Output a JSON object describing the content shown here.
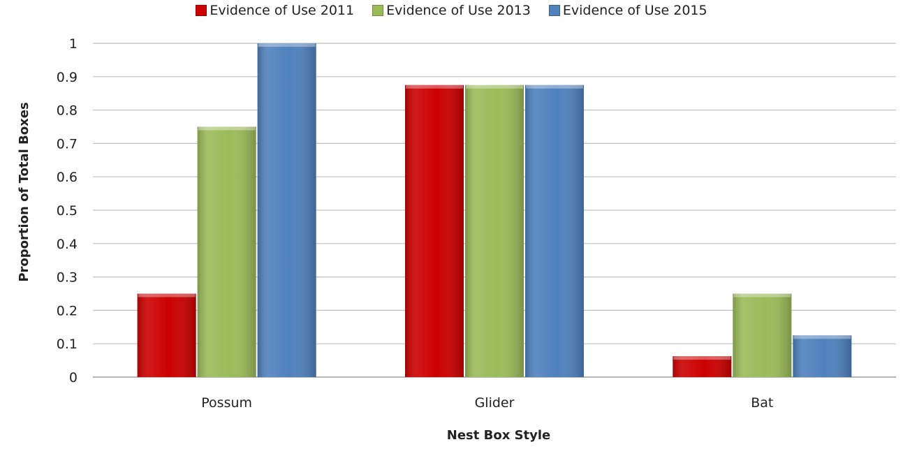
{
  "chart_data": {
    "type": "bar",
    "categories": [
      "Possum",
      "Glider",
      "Bat"
    ],
    "series": [
      {
        "name": "Evidence of Use 2011",
        "values": [
          0.25,
          0.875,
          0.0625
        ],
        "color": "#cc0000"
      },
      {
        "name": "Evidence of Use 2013",
        "values": [
          0.75,
          0.875,
          0.25
        ],
        "color": "#9bbb59"
      },
      {
        "name": "Evidence of Use 2015",
        "values": [
          1.0,
          0.875,
          0.125
        ],
        "color": "#4f81bd"
      }
    ],
    "title": "",
    "xlabel": "Nest Box Style",
    "ylabel": "Proportion of Total Boxes",
    "ylim": [
      0,
      1
    ],
    "yticks": [
      "0",
      "0.1",
      "0.2",
      "0.3",
      "0.4",
      "0.5",
      "0.6",
      "0.7",
      "0.8",
      "0.9",
      "1"
    ],
    "grid": true,
    "legend_position": "top"
  }
}
